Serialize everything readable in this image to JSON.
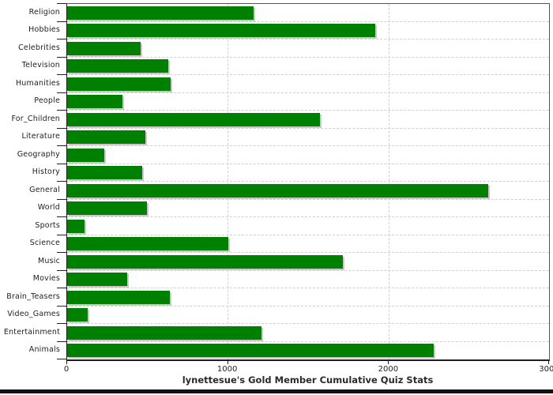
{
  "chart_data": {
    "type": "bar",
    "orientation": "horizontal",
    "title": "lynettesue's Gold Member Cumulative Quiz Stats",
    "categories": [
      "Religion",
      "Hobbies",
      "Celebrities",
      "Television",
      "Humanities",
      "People",
      "For_Children",
      "Literature",
      "Geography",
      "History",
      "General",
      "World",
      "Sports",
      "Science",
      "Music",
      "Movies",
      "Brain_Teasers",
      "Video_Games",
      "Entertainment",
      "Animals"
    ],
    "values": [
      1160,
      1920,
      455,
      630,
      645,
      345,
      1575,
      485,
      230,
      465,
      2620,
      495,
      110,
      1005,
      1715,
      375,
      640,
      130,
      1210,
      2280
    ],
    "xlabel": "",
    "ylabel": "",
    "xlim": [
      0,
      3000
    ],
    "x_ticks": [
      0,
      1000,
      2000,
      3000
    ],
    "x_tick_labels": [
      "0",
      "1000",
      "2000",
      "3000"
    ],
    "grid": true,
    "legend": "none",
    "bar_color": "#008000",
    "grid_color": "#cfcfcf",
    "axis_color": "#1f1f1f",
    "text_color": "#222222"
  }
}
